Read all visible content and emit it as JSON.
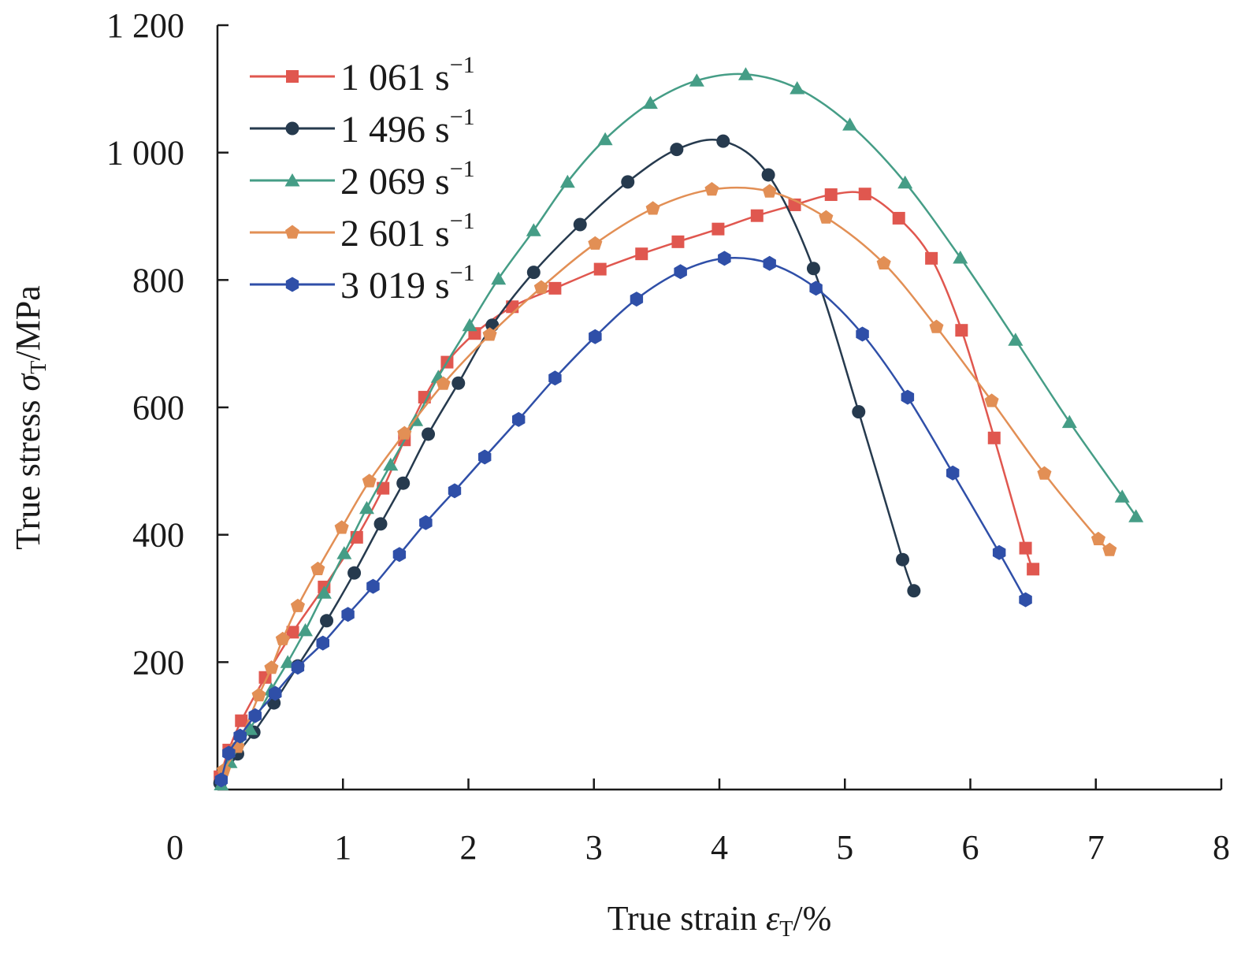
{
  "chart_data": {
    "type": "line",
    "title": "",
    "xlabel": {
      "prefix": "True strain ",
      "symbol": "ε",
      "sub": "T",
      "suffix": "/%"
    },
    "ylabel": {
      "prefix": "True stress ",
      "symbol": "σ",
      "sub": "T",
      "suffix": "/MPa"
    },
    "xlim": [
      0,
      8
    ],
    "ylim": [
      0,
      1200
    ],
    "xticks": [
      0,
      1,
      2,
      3,
      4,
      5,
      6,
      7,
      8
    ],
    "xtick_labels": [
      "0",
      "1",
      "2",
      "3",
      "4",
      "5",
      "6",
      "7",
      "8"
    ],
    "yticks": [
      200,
      400,
      600,
      800,
      1000,
      1200
    ],
    "ytick_labels": [
      "200",
      "400",
      "600",
      "800",
      "1 000",
      "1 200"
    ],
    "grid": false,
    "legend_position": "top-left",
    "series": [
      {
        "name": "1 061",
        "unit": "s",
        "exp": "−1",
        "color": "#e0574f",
        "marker": "square",
        "x": [
          0.02,
          0.09,
          0.19,
          0.38,
          0.6,
          0.85,
          1.11,
          1.32,
          1.49,
          1.65,
          1.83,
          2.05,
          2.35,
          2.69,
          3.05,
          3.38,
          3.67,
          3.99,
          4.3,
          4.6,
          4.89,
          5.16,
          5.43,
          5.69,
          5.93,
          6.19,
          6.44,
          6.5
        ],
        "y": [
          20,
          62,
          108,
          176,
          247,
          318,
          396,
          473,
          549,
          616,
          671,
          716,
          758,
          787,
          817,
          841,
          860,
          880,
          901,
          918,
          934,
          935,
          897,
          834,
          721,
          552,
          379,
          346
        ]
      },
      {
        "name": "1 496",
        "unit": "s",
        "exp": "−1",
        "color": "#263a4e",
        "marker": "circle",
        "x": [
          0.02,
          0.16,
          0.29,
          0.45,
          0.64,
          0.87,
          1.09,
          1.3,
          1.48,
          1.68,
          1.92,
          2.19,
          2.52,
          2.89,
          3.27,
          3.66,
          4.03,
          4.39,
          4.75,
          5.11,
          5.46,
          5.55
        ],
        "y": [
          10,
          56,
          90,
          136,
          194,
          265,
          340,
          417,
          481,
          558,
          638,
          729,
          812,
          887,
          954,
          1005,
          1018,
          965,
          818,
          593,
          361,
          312
        ]
      },
      {
        "name": "2 069",
        "unit": "s",
        "exp": "−1",
        "color": "#459d86",
        "marker": "triangle",
        "x": [
          0.03,
          0.1,
          0.26,
          0.43,
          0.56,
          0.7,
          0.85,
          1.01,
          1.19,
          1.38,
          1.58,
          1.76,
          2.01,
          2.24,
          2.52,
          2.79,
          3.09,
          3.45,
          3.82,
          4.21,
          4.62,
          5.04,
          5.48,
          5.92,
          6.36,
          6.79,
          7.21,
          7.32
        ],
        "y": [
          8,
          43,
          95,
          157,
          200,
          250,
          309,
          371,
          442,
          510,
          580,
          648,
          729,
          802,
          878,
          954,
          1021,
          1078,
          1113,
          1123,
          1101,
          1044,
          953,
          835,
          706,
          577,
          460,
          429
        ]
      },
      {
        "name": "2 601",
        "unit": "s",
        "exp": "−1",
        "color": "#e28f55",
        "marker": "pentagon",
        "x": [
          0.05,
          0.16,
          0.33,
          0.43,
          0.52,
          0.64,
          0.8,
          0.99,
          1.21,
          1.49,
          1.8,
          2.17,
          2.58,
          3.01,
          3.47,
          3.94,
          4.4,
          4.85,
          5.31,
          5.73,
          6.17,
          6.59,
          7.02,
          7.11
        ],
        "y": [
          30,
          67,
          148,
          191,
          236,
          288,
          346,
          411,
          484,
          559,
          637,
          714,
          788,
          857,
          912,
          942,
          939,
          898,
          826,
          726,
          610,
          496,
          393,
          376
        ]
      },
      {
        "name": "3 019",
        "unit": "s",
        "exp": "−1",
        "color": "#2f4fa8",
        "marker": "hexagon",
        "x": [
          0.03,
          0.09,
          0.18,
          0.3,
          0.46,
          0.64,
          0.84,
          1.04,
          1.24,
          1.45,
          1.66,
          1.89,
          2.13,
          2.4,
          2.69,
          3.01,
          3.34,
          3.69,
          4.04,
          4.4,
          4.77,
          5.14,
          5.5,
          5.86,
          6.23,
          6.44
        ],
        "y": [
          15,
          57,
          84,
          116,
          151,
          192,
          230,
          275,
          319,
          369,
          419,
          469,
          522,
          581,
          646,
          711,
          770,
          813,
          834,
          826,
          787,
          715,
          616,
          497,
          372,
          298
        ]
      }
    ]
  }
}
